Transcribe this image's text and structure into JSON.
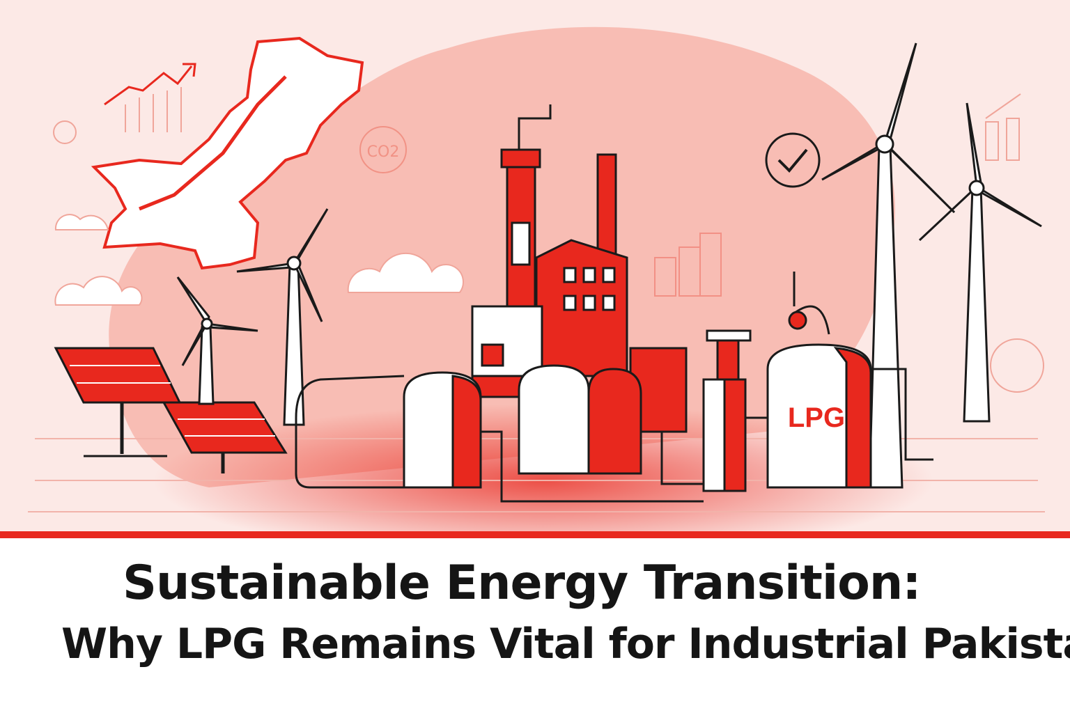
{
  "title": {
    "line1": "Sustainable Energy Transition:",
    "line2": "Why LPG Remains Vital for Industrial Pakistan"
  },
  "illustration": {
    "tank_label": "LPG",
    "co2_label": "CO2",
    "colors": {
      "accent": "#e8281e",
      "background": "#fbe4e0",
      "map_fill": "#f4a59a",
      "outline": "#1a1a1a"
    },
    "icons": [
      "pakistan-map",
      "trend-arrow",
      "wind-turbine",
      "solar-panel",
      "factory",
      "lpg-tank",
      "checkmark-circle",
      "cloud",
      "bar-chart"
    ]
  }
}
